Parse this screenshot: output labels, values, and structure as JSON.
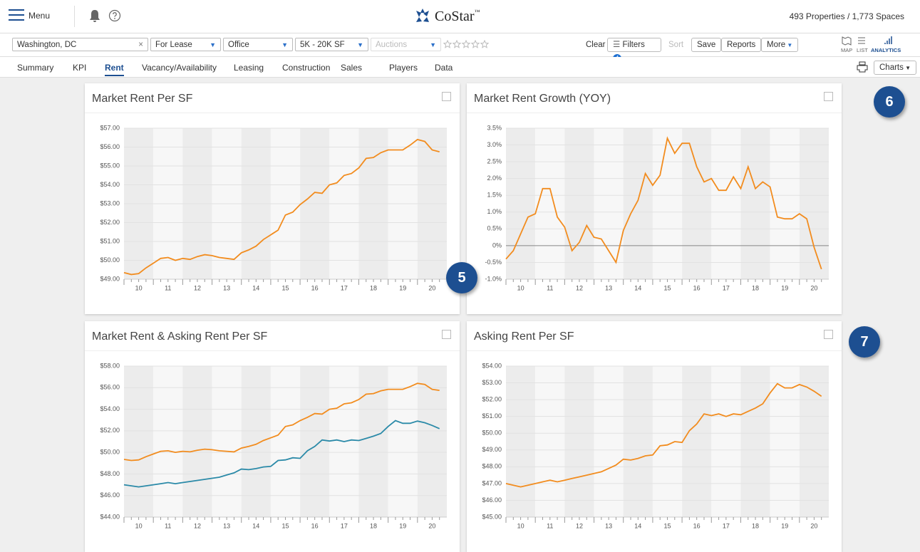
{
  "header": {
    "menu": "Menu",
    "brand": "CoStar",
    "brand_mark": "™",
    "summary": "493 Properties / 1,773 Spaces"
  },
  "toolbar": {
    "location": "Washington, DC",
    "clear_x": "×",
    "lease": "For Lease",
    "type": "Office",
    "size": "5K - 20K SF",
    "auctions": "Auctions",
    "clear": "Clear",
    "filters": "Filters",
    "filter_count": "4",
    "sort": "Sort",
    "save": "Save",
    "reports": "Reports",
    "more": "More",
    "map": "MAP",
    "list": "LIST",
    "analytics": "ANALYTICS"
  },
  "tabs": [
    "Summary",
    "KPI",
    "Rent",
    "Vacancy/Availability",
    "Leasing",
    "Construction",
    "Sales",
    "Players",
    "Data"
  ],
  "charts_button": "Charts",
  "badges": [
    "5",
    "6",
    "7"
  ],
  "chart_data": [
    {
      "type": "line",
      "title": "Market Rent Per SF",
      "xlim": [
        9.5,
        20.5
      ],
      "xticks": [
        10,
        11,
        12,
        13,
        14,
        15,
        16,
        17,
        18,
        19,
        20
      ],
      "x": [
        9.5,
        9.75,
        10,
        10.25,
        10.5,
        10.75,
        11,
        11.25,
        11.5,
        11.75,
        12,
        12.25,
        12.5,
        12.75,
        13,
        13.25,
        13.5,
        13.75,
        14,
        14.25,
        14.5,
        14.75,
        15,
        15.25,
        15.5,
        15.75,
        16,
        16.25,
        16.5,
        16.75,
        17,
        17.25,
        17.5,
        17.75,
        18,
        18.25,
        18.5,
        18.75,
        19,
        19.25,
        19.5,
        19.75,
        20,
        20.25
      ],
      "ylim": [
        49,
        57
      ],
      "yticks": [
        {
          "value": 49,
          "label": "$49.00"
        },
        {
          "value": 50,
          "label": "$50.00"
        },
        {
          "value": 51,
          "label": "$51.00"
        },
        {
          "value": 52,
          "label": "$52.00"
        },
        {
          "value": 53,
          "label": "$53.00"
        },
        {
          "value": 54,
          "label": "$54.00"
        },
        {
          "value": 55,
          "label": "$55.00"
        },
        {
          "value": 56,
          "label": "$56.00"
        },
        {
          "value": 57,
          "label": "$57.00"
        }
      ],
      "series": [
        {
          "color": "#f28c1e",
          "values": [
            49.35,
            49.25,
            49.3,
            49.6,
            49.85,
            50.1,
            50.15,
            50.0,
            50.1,
            50.05,
            50.2,
            50.3,
            50.25,
            50.15,
            50.1,
            50.05,
            50.4,
            50.55,
            50.75,
            51.1,
            51.35,
            51.6,
            52.4,
            52.55,
            52.95,
            53.25,
            53.6,
            53.55,
            54.0,
            54.1,
            54.5,
            54.6,
            54.9,
            55.4,
            55.45,
            55.7,
            55.85,
            55.85,
            55.85,
            56.1,
            56.4,
            56.3,
            55.85,
            55.75
          ]
        }
      ]
    },
    {
      "type": "line",
      "title": "Market Rent Growth (YOY)",
      "xlim": [
        9.5,
        20.5
      ],
      "xticks": [
        10,
        11,
        12,
        13,
        14,
        15,
        16,
        17,
        18,
        19,
        20
      ],
      "x": [
        9.5,
        9.75,
        10,
        10.25,
        10.5,
        10.75,
        11,
        11.25,
        11.5,
        11.75,
        12,
        12.25,
        12.5,
        12.75,
        13,
        13.25,
        13.5,
        13.75,
        14,
        14.25,
        14.5,
        14.75,
        15,
        15.25,
        15.5,
        15.75,
        16,
        16.25,
        16.5,
        16.75,
        17,
        17.25,
        17.5,
        17.75,
        18,
        18.25,
        18.5,
        18.75,
        19,
        19.25,
        19.5,
        19.75,
        20,
        20.25
      ],
      "ylim": [
        -1,
        3.5
      ],
      "yticks": [
        {
          "value": -1,
          "label": "-1.0%"
        },
        {
          "value": -0.5,
          "label": "-0.5%"
        },
        {
          "value": 0,
          "label": "0%"
        },
        {
          "value": 0.5,
          "label": "0.5%"
        },
        {
          "value": 1,
          "label": "1.0%"
        },
        {
          "value": 1.5,
          "label": "1.5%"
        },
        {
          "value": 2,
          "label": "2.0%"
        },
        {
          "value": 2.5,
          "label": "2.5%"
        },
        {
          "value": 3,
          "label": "3.0%"
        },
        {
          "value": 3.5,
          "label": "3.5%"
        }
      ],
      "zero_line": true,
      "series": [
        {
          "color": "#f28c1e",
          "values": [
            -0.4,
            -0.15,
            0.35,
            0.85,
            0.95,
            1.7,
            1.7,
            0.85,
            0.55,
            -0.15,
            0.1,
            0.6,
            0.25,
            0.2,
            -0.15,
            -0.5,
            0.45,
            0.95,
            1.35,
            2.15,
            1.8,
            2.1,
            3.2,
            2.75,
            3.05,
            3.05,
            2.35,
            1.9,
            2.0,
            1.65,
            1.65,
            2.05,
            1.7,
            2.35,
            1.7,
            1.9,
            1.75,
            0.85,
            0.8,
            0.8,
            0.95,
            0.8,
            -0.05,
            -0.7
          ]
        }
      ]
    },
    {
      "type": "line",
      "title": "Market Rent & Asking Rent Per SF",
      "xlim": [
        9.5,
        20.5
      ],
      "xticks": [
        10,
        11,
        12,
        13,
        14,
        15,
        16,
        17,
        18,
        19,
        20
      ],
      "x": [
        9.5,
        9.75,
        10,
        10.25,
        10.5,
        10.75,
        11,
        11.25,
        11.5,
        11.75,
        12,
        12.25,
        12.5,
        12.75,
        13,
        13.25,
        13.5,
        13.75,
        14,
        14.25,
        14.5,
        14.75,
        15,
        15.25,
        15.5,
        15.75,
        16,
        16.25,
        16.5,
        16.75,
        17,
        17.25,
        17.5,
        17.75,
        18,
        18.25,
        18.5,
        18.75,
        19,
        19.25,
        19.5,
        19.75,
        20,
        20.25
      ],
      "ylim": [
        44,
        58
      ],
      "yticks": [
        {
          "value": 44,
          "label": "$44.00"
        },
        {
          "value": 46,
          "label": "$46.00"
        },
        {
          "value": 48,
          "label": "$48.00"
        },
        {
          "value": 50,
          "label": "$50.00"
        },
        {
          "value": 52,
          "label": "$52.00"
        },
        {
          "value": 54,
          "label": "$54.00"
        },
        {
          "value": 56,
          "label": "$56.00"
        },
        {
          "value": 58,
          "label": "$58.00"
        }
      ],
      "series": [
        {
          "color": "#f28c1e",
          "values": [
            49.35,
            49.25,
            49.3,
            49.6,
            49.85,
            50.1,
            50.15,
            50.0,
            50.1,
            50.05,
            50.2,
            50.3,
            50.25,
            50.15,
            50.1,
            50.05,
            50.4,
            50.55,
            50.75,
            51.1,
            51.35,
            51.6,
            52.4,
            52.55,
            52.95,
            53.25,
            53.6,
            53.55,
            54.0,
            54.1,
            54.5,
            54.6,
            54.9,
            55.4,
            55.45,
            55.7,
            55.85,
            55.85,
            55.85,
            56.1,
            56.4,
            56.3,
            55.85,
            55.75
          ]
        },
        {
          "color": "#2b8aa8",
          "values": [
            47.0,
            46.9,
            46.8,
            46.9,
            47.0,
            47.1,
            47.2,
            47.1,
            47.2,
            47.3,
            47.4,
            47.5,
            47.6,
            47.7,
            47.9,
            48.1,
            48.45,
            48.4,
            48.5,
            48.65,
            48.7,
            49.25,
            49.3,
            49.5,
            49.45,
            50.15,
            50.55,
            51.15,
            51.05,
            51.15,
            51.0,
            51.15,
            51.1,
            51.3,
            51.5,
            51.75,
            52.4,
            52.95,
            52.7,
            52.7,
            52.9,
            52.75,
            52.5,
            52.2
          ]
        }
      ]
    },
    {
      "type": "line",
      "title": "Asking Rent Per SF",
      "xlim": [
        9.5,
        20.5
      ],
      "xticks": [
        10,
        11,
        12,
        13,
        14,
        15,
        16,
        17,
        18,
        19,
        20
      ],
      "x": [
        9.5,
        9.75,
        10,
        10.25,
        10.5,
        10.75,
        11,
        11.25,
        11.5,
        11.75,
        12,
        12.25,
        12.5,
        12.75,
        13,
        13.25,
        13.5,
        13.75,
        14,
        14.25,
        14.5,
        14.75,
        15,
        15.25,
        15.5,
        15.75,
        16,
        16.25,
        16.5,
        16.75,
        17,
        17.25,
        17.5,
        17.75,
        18,
        18.25,
        18.5,
        18.75,
        19,
        19.25,
        19.5,
        19.75,
        20,
        20.25
      ],
      "ylim": [
        45,
        54
      ],
      "yticks": [
        {
          "value": 45,
          "label": "$45.00"
        },
        {
          "value": 46,
          "label": "$46.00"
        },
        {
          "value": 47,
          "label": "$47.00"
        },
        {
          "value": 48,
          "label": "$48.00"
        },
        {
          "value": 49,
          "label": "$49.00"
        },
        {
          "value": 50,
          "label": "$50.00"
        },
        {
          "value": 51,
          "label": "$51.00"
        },
        {
          "value": 52,
          "label": "$52.00"
        },
        {
          "value": 53,
          "label": "$53.00"
        },
        {
          "value": 54,
          "label": "$54.00"
        }
      ],
      "series": [
        {
          "color": "#f28c1e",
          "values": [
            47.0,
            46.9,
            46.8,
            46.9,
            47.0,
            47.1,
            47.2,
            47.1,
            47.2,
            47.3,
            47.4,
            47.5,
            47.6,
            47.7,
            47.9,
            48.1,
            48.45,
            48.4,
            48.5,
            48.65,
            48.7,
            49.25,
            49.3,
            49.5,
            49.45,
            50.15,
            50.55,
            51.15,
            51.05,
            51.15,
            51.0,
            51.15,
            51.1,
            51.3,
            51.5,
            51.75,
            52.4,
            52.95,
            52.7,
            52.7,
            52.9,
            52.75,
            52.5,
            52.2
          ]
        }
      ]
    }
  ]
}
